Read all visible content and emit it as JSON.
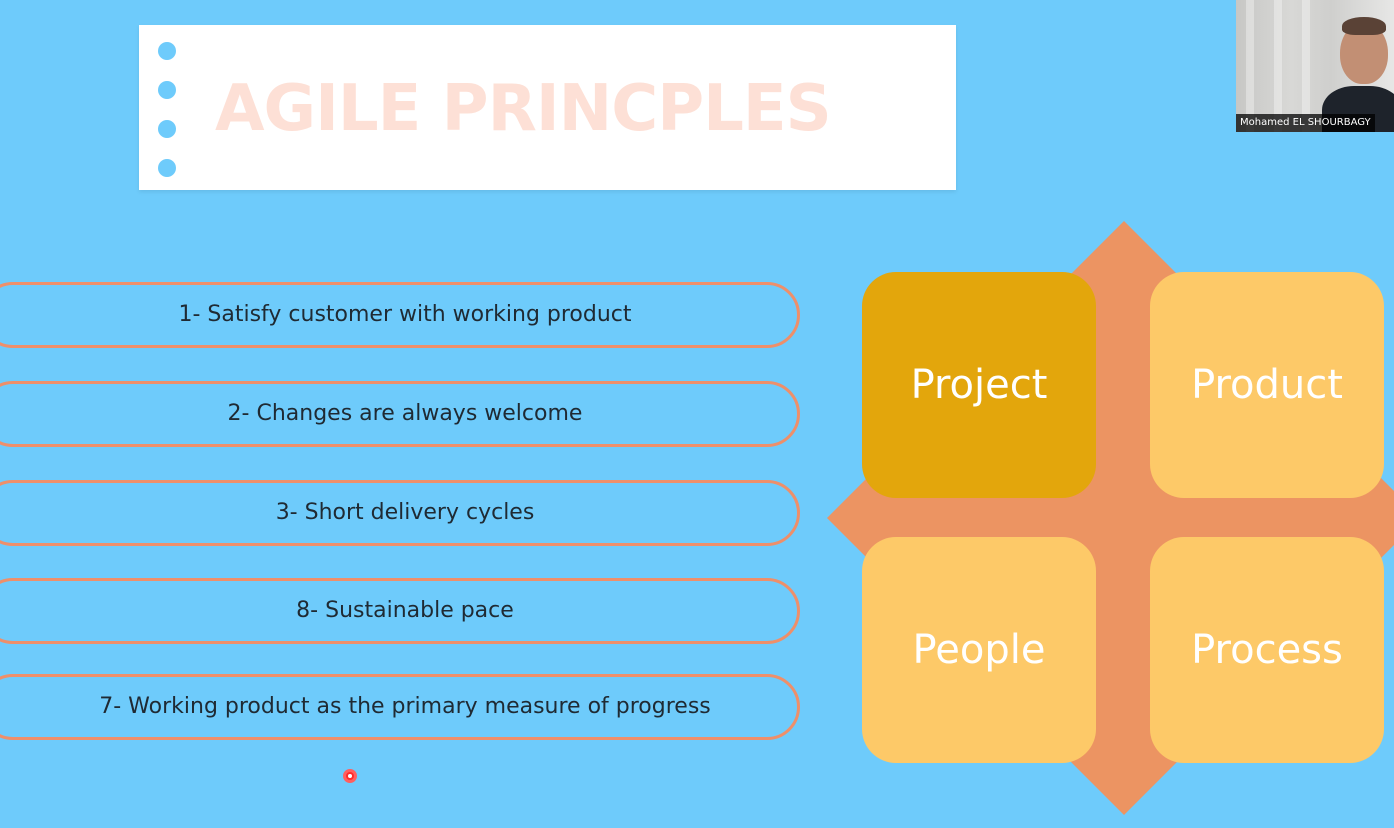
{
  "slide": {
    "title": "AGILE PRINCPLES",
    "principles": [
      "1- Satisfy customer with working product",
      "2- Changes are always welcome",
      "3- Short delivery cycles",
      "8- Sustainable pace",
      "7- Working product as the primary measure of progress"
    ],
    "tiles": {
      "project": "Project",
      "product": "Product",
      "people": "People",
      "process": "Process"
    }
  },
  "webcam": {
    "participant_name": "Mohamed EL SHOURBAGY"
  },
  "colors": {
    "background": "#6ecbfb",
    "accent_border": "#ee8f6a",
    "tile": "#fdc968",
    "tile_active": "#e3a60c",
    "diamond": "#ec9462"
  }
}
